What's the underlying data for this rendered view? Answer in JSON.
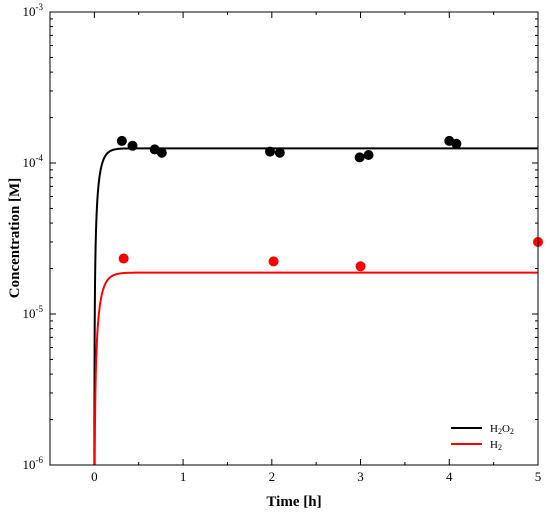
{
  "chart_data": {
    "type": "scatter",
    "xlabel": "Time [h]",
    "ylabel": "Concentration [M]",
    "xlim": [
      -0.5,
      5
    ],
    "ylim": [
      1e-06,
      0.001
    ],
    "yscale": "log",
    "grid": false,
    "legend_position": "bottom-right",
    "x_ticks": [
      0,
      1,
      2,
      3,
      4,
      5
    ],
    "y_ticks": [
      {
        "value": 1e-06,
        "base": "10",
        "exp": "-6"
      },
      {
        "value": 1e-05,
        "base": "10",
        "exp": "-5"
      },
      {
        "value": 0.0001,
        "base": "10",
        "exp": "-4"
      },
      {
        "value": 0.001,
        "base": "10",
        "exp": "-3"
      }
    ],
    "series": [
      {
        "name": "H2O2",
        "label_parts": [
          [
            "H",
            false
          ],
          [
            "2",
            true
          ],
          [
            "O",
            false
          ],
          [
            "2",
            true
          ]
        ],
        "color": "#000000",
        "points": [
          [
            0.31,
            0.00014
          ],
          [
            0.43,
            0.00013
          ],
          [
            0.68,
            0.000123
          ],
          [
            0.76,
            0.000117
          ],
          [
            1.98,
            0.000119
          ],
          [
            2.09,
            0.000117
          ],
          [
            2.99,
            0.000109
          ],
          [
            3.09,
            0.000113
          ],
          [
            4.0,
            0.00014
          ],
          [
            4.08,
            0.000134
          ]
        ],
        "fit": {
          "c_inf": 0.000125,
          "rate_per_h": 18
        }
      },
      {
        "name": "H2",
        "label_parts": [
          [
            "H",
            false
          ],
          [
            "2",
            true
          ]
        ],
        "color": "#ff0000",
        "points": [
          [
            0.33,
            2.33e-05
          ],
          [
            2.02,
            2.23e-05
          ],
          [
            3.0,
            2.07e-05
          ],
          [
            5.0,
            3e-05
          ]
        ],
        "fit": {
          "c_inf": 1.88e-05,
          "rate_per_h": 15
        }
      }
    ]
  }
}
